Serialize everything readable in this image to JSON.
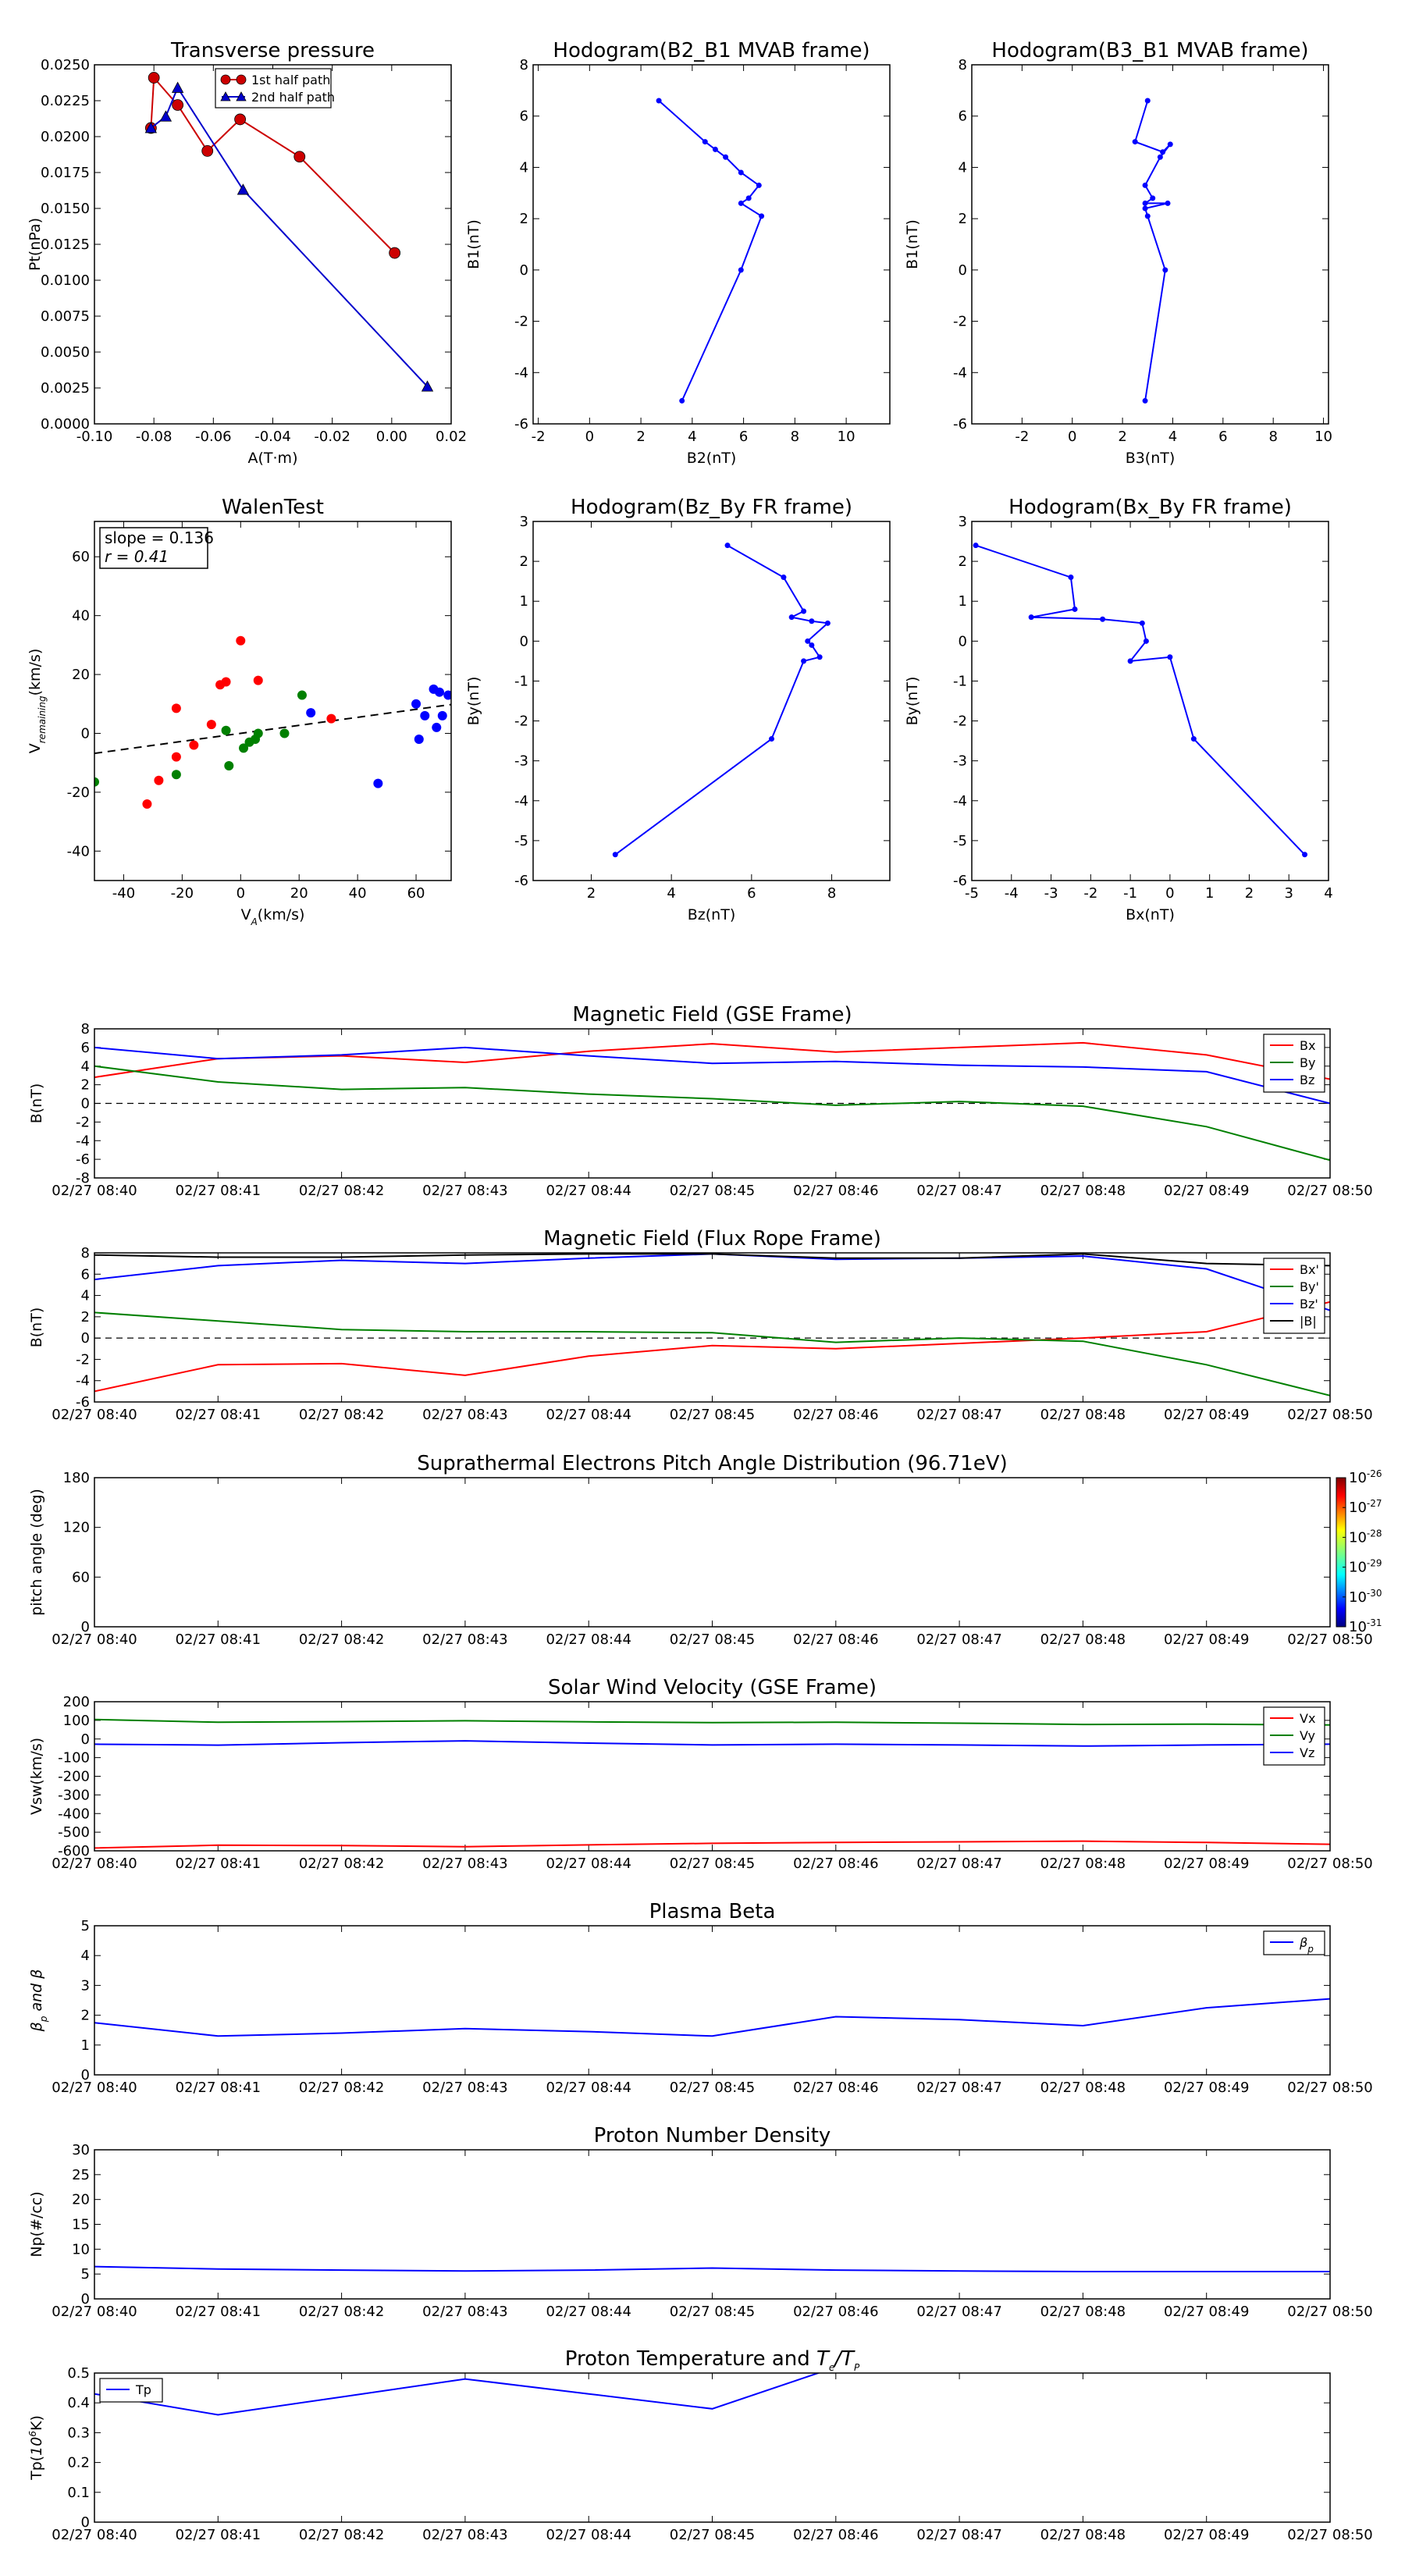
{
  "chart_data": [
    {
      "id": "pt",
      "type": "line",
      "title": "Transverse pressure",
      "xlabel": "A(T·m)",
      "ylabel": "Pt(nPa)",
      "xlim": [
        -0.1,
        0.02
      ],
      "ylim": [
        0,
        0.025
      ],
      "xticks": [
        -0.1,
        -0.08,
        -0.06,
        -0.04,
        -0.02,
        0.0,
        0.02
      ],
      "xticklabels": [
        "-0.10",
        "-0.08",
        "-0.06",
        "-0.04",
        "-0.02",
        "0.00",
        "0.02"
      ],
      "yticks": [
        0,
        0.0025,
        0.005,
        0.0075,
        0.01,
        0.0125,
        0.015,
        0.0175,
        0.02,
        0.0225,
        0.025
      ],
      "yticklabels": [
        "0.0000",
        "0.0025",
        "0.0050",
        "0.0075",
        "0.0100",
        "0.0125",
        "0.0150",
        "0.0175",
        "0.0200",
        "0.0225",
        "0.0250"
      ],
      "legend": "top-center",
      "series": [
        {
          "name": "1st half path",
          "color": "#cc0000",
          "marker": "circle",
          "x": [
            0.001,
            -0.031,
            -0.051,
            -0.062,
            -0.072,
            -0.08,
            -0.081
          ],
          "y": [
            0.0119,
            0.0186,
            0.0212,
            0.019,
            0.0222,
            0.0241,
            0.0206
          ]
        },
        {
          "name": "2nd half path",
          "color": "#0000cc",
          "marker": "triangle",
          "x": [
            -0.081,
            -0.076,
            -0.072,
            -0.05,
            0.012
          ],
          "y": [
            0.0206,
            0.0214,
            0.0234,
            0.0163,
            0.0026
          ]
        }
      ]
    },
    {
      "id": "h21",
      "type": "line",
      "title": "Hodogram(B2_B1 MVAB frame)",
      "xlabel": "B2(nT)",
      "ylabel": "B1(nT)",
      "xlim": [
        -2.2,
        11.7
      ],
      "ylim": [
        -6,
        8
      ],
      "xticks": [
        -2,
        0,
        2,
        4,
        6,
        8,
        10
      ],
      "yticks": [
        -6,
        -4,
        -2,
        0,
        2,
        4,
        6,
        8
      ],
      "series": [
        {
          "name": "",
          "color": "#0000ff",
          "marker": "dot",
          "x": [
            2.7,
            4.5,
            4.9,
            5.3,
            5.9,
            6.6,
            6.2,
            5.9,
            6.7,
            5.9,
            3.6
          ],
          "y": [
            6.6,
            5.0,
            4.7,
            4.4,
            3.8,
            3.3,
            2.8,
            2.6,
            2.1,
            0.0,
            -5.1
          ]
        }
      ]
    },
    {
      "id": "h31",
      "type": "line",
      "title": "Hodogram(B3_B1 MVAB frame)",
      "xlabel": "B3(nT)",
      "ylabel": "B1(nT)",
      "xlim": [
        -4,
        10.2
      ],
      "ylim": [
        -6,
        8
      ],
      "xticks": [
        -2,
        0,
        2,
        4,
        6,
        8,
        10
      ],
      "yticks": [
        -6,
        -4,
        -2,
        0,
        2,
        4,
        6,
        8
      ],
      "series": [
        {
          "name": "",
          "color": "#0000ff",
          "marker": "dot",
          "x": [
            3.0,
            2.5,
            3.6,
            3.9,
            3.5,
            2.9,
            3.2,
            2.9,
            3.8,
            2.9,
            3.0,
            3.7,
            2.9
          ],
          "y": [
            6.6,
            5.0,
            4.6,
            4.9,
            4.4,
            3.3,
            2.8,
            2.6,
            2.6,
            2.4,
            2.1,
            0.0,
            -5.1
          ]
        }
      ]
    },
    {
      "id": "walen",
      "type": "scatter",
      "title": "WalenTest",
      "xlabel": "V",
      "xlabel_sub": "A",
      "xlabel_rest": "(km/s)",
      "ylabel": "V",
      "ylabel_sub": "remaining",
      "ylabel_rest": "(km/s)",
      "xlim": [
        -50,
        72
      ],
      "ylim": [
        -50,
        72
      ],
      "xticks": [
        -40,
        -20,
        0,
        20,
        40,
        60
      ],
      "yticks": [
        -40,
        -20,
        0,
        20,
        40,
        60
      ],
      "annotation": [
        "slope = 0.136",
        "r = 0.41"
      ],
      "fit": {
        "x": [
          -50,
          72
        ],
        "y": [
          -6.8,
          9.8
        ]
      },
      "series": [
        {
          "name": "",
          "color": "#ff0000",
          "x": [
            -32,
            -28,
            -22,
            -22,
            -16,
            -10,
            -7,
            -5,
            0,
            6,
            31
          ],
          "y": [
            -24,
            -16,
            8.5,
            -8,
            -4,
            3,
            16.5,
            17.5,
            31.5,
            18,
            5
          ]
        },
        {
          "name": "",
          "color": "#008000",
          "x": [
            -50,
            -22,
            -5,
            -4,
            1,
            3,
            5,
            6,
            15,
            21
          ],
          "y": [
            -16.5,
            -14,
            1,
            -11,
            -5,
            -3,
            -2,
            0,
            0,
            13
          ]
        },
        {
          "name": "",
          "color": "#0000ff",
          "x": [
            24,
            47,
            60,
            61,
            63,
            66,
            67,
            68,
            69,
            71
          ],
          "y": [
            7,
            -17,
            10,
            -2,
            6,
            15,
            2,
            14,
            6,
            13
          ]
        }
      ]
    },
    {
      "id": "hzy",
      "type": "line",
      "title": "Hodogram(Bz_By FR frame)",
      "xlabel": "Bz(nT)",
      "ylabel": "By(nT)",
      "xlim": [
        0.55,
        9.45
      ],
      "ylim": [
        -6,
        3
      ],
      "xticks": [
        2,
        4,
        6,
        8
      ],
      "yticks": [
        -6,
        -5,
        -4,
        -3,
        -2,
        -1,
        0,
        1,
        2,
        3
      ],
      "series": [
        {
          "name": "",
          "color": "#0000ff",
          "marker": "dot",
          "x": [
            5.4,
            6.8,
            7.3,
            7.0,
            7.5,
            7.9,
            7.4,
            7.5,
            7.7,
            7.3,
            6.5,
            2.6
          ],
          "y": [
            2.4,
            1.6,
            0.75,
            0.6,
            0.5,
            0.45,
            0.0,
            -0.1,
            -0.4,
            -0.5,
            -2.45,
            -5.35
          ]
        }
      ]
    },
    {
      "id": "hxy",
      "type": "line",
      "title": "Hodogram(Bx_By FR frame)",
      "xlabel": "Bx(nT)",
      "ylabel": "By(nT)",
      "xlim": [
        -5,
        4
      ],
      "ylim": [
        -6,
        3
      ],
      "xticks": [
        -5,
        -4,
        -3,
        -2,
        -1,
        0,
        1,
        2,
        3,
        4
      ],
      "yticks": [
        -6,
        -5,
        -4,
        -3,
        -2,
        -1,
        0,
        1,
        2,
        3
      ],
      "series": [
        {
          "name": "",
          "color": "#0000ff",
          "marker": "dot",
          "x": [
            -4.9,
            -2.5,
            -2.4,
            -3.5,
            -1.7,
            -0.7,
            -0.6,
            -1.0,
            0.0,
            0.6,
            3.4
          ],
          "y": [
            2.4,
            1.6,
            0.8,
            0.6,
            0.55,
            0.45,
            0.0,
            -0.5,
            -0.4,
            -2.45,
            -5.35
          ]
        }
      ]
    },
    {
      "id": "bgse",
      "type": "line",
      "title": "Magnetic Field (GSE Frame)",
      "ylabel": "B(nT)",
      "ylim": [
        -8,
        8
      ],
      "yticks": [
        -8,
        -6,
        -4,
        -2,
        0,
        2,
        4,
        6,
        8
      ],
      "zero_line": true,
      "legend": "top-right",
      "categories": [
        "02/27 08:40",
        "02/27 08:41",
        "02/27 08:42",
        "02/27 08:43",
        "02/27 08:44",
        "02/27 08:45",
        "02/27 08:46",
        "02/27 08:47",
        "02/27 08:48",
        "02/27 08:49",
        "02/27 08:50"
      ],
      "series": [
        {
          "name": "Bx",
          "color": "#ff0000",
          "values": [
            2.8,
            4.8,
            5.1,
            4.4,
            5.6,
            6.4,
            5.5,
            6.0,
            6.5,
            5.2,
            2.6
          ]
        },
        {
          "name": "By",
          "color": "#008000",
          "values": [
            4.0,
            2.3,
            1.5,
            1.7,
            1.0,
            0.5,
            -0.2,
            0.2,
            -0.3,
            -2.5,
            -6.1
          ]
        },
        {
          "name": "Bz",
          "color": "#0000ff",
          "values": [
            6.0,
            4.8,
            5.2,
            6.0,
            5.1,
            4.3,
            4.5,
            4.1,
            3.9,
            3.4,
            0.0
          ]
        }
      ]
    },
    {
      "id": "bfr",
      "type": "line",
      "title": "Magnetic Field (Flux Rope Frame)",
      "ylabel": "B(nT)",
      "ylim": [
        -6,
        8
      ],
      "yticks": [
        -6,
        -4,
        -2,
        0,
        2,
        4,
        6,
        8
      ],
      "zero_line": true,
      "legend": "top-right",
      "categories": [
        "02/27 08:40",
        "02/27 08:41",
        "02/27 08:42",
        "02/27 08:43",
        "02/27 08:44",
        "02/27 08:45",
        "02/27 08:46",
        "02/27 08:47",
        "02/27 08:48",
        "02/27 08:49",
        "02/27 08:50"
      ],
      "series": [
        {
          "name": "Bx'",
          "color": "#ff0000",
          "values": [
            -5.0,
            -2.5,
            -2.4,
            -3.5,
            -1.7,
            -0.7,
            -1.0,
            -0.5,
            0.0,
            0.6,
            3.4
          ]
        },
        {
          "name": "By'",
          "color": "#008000",
          "values": [
            2.4,
            1.6,
            0.8,
            0.6,
            0.6,
            0.5,
            -0.4,
            0.0,
            -0.3,
            -2.5,
            -5.4
          ]
        },
        {
          "name": "Bz'",
          "color": "#0000ff",
          "values": [
            5.5,
            6.8,
            7.3,
            7.0,
            7.5,
            7.9,
            7.4,
            7.5,
            7.7,
            6.5,
            2.6
          ]
        },
        {
          "name": "|B|",
          "color": "#000000",
          "values": [
            7.8,
            7.6,
            7.6,
            7.8,
            7.9,
            7.9,
            7.5,
            7.5,
            7.9,
            7.0,
            6.8
          ]
        }
      ]
    },
    {
      "id": "pad",
      "type": "heatmap",
      "title": "Suprathermal Electrons Pitch Angle Distribution (96.71eV)",
      "ylabel": "pitch angle (deg)",
      "ylim": [
        0,
        180
      ],
      "yticks": [
        0,
        60,
        120,
        180
      ],
      "categories": [
        "02/27 08:40",
        "02/27 08:41",
        "02/27 08:42",
        "02/27 08:43",
        "02/27 08:44",
        "02/27 08:45",
        "02/27 08:46",
        "02/27 08:47",
        "02/27 08:48",
        "02/27 08:49",
        "02/27 08:50"
      ],
      "colorbar_exponents": [
        "-26",
        "-27",
        "-28",
        "-29",
        "-30",
        "-31"
      ],
      "colorbar_base": "10"
    },
    {
      "id": "vsw",
      "type": "line",
      "title": "Solar Wind Velocity (GSE Frame)",
      "ylabel": "Vsw(km/s)",
      "ylim": [
        -600,
        200
      ],
      "yticks": [
        -600,
        -500,
        -400,
        -300,
        -200,
        -100,
        0,
        100,
        200
      ],
      "legend": "top-right",
      "categories": [
        "02/27 08:40",
        "02/27 08:41",
        "02/27 08:42",
        "02/27 08:43",
        "02/27 08:44",
        "02/27 08:45",
        "02/27 08:46",
        "02/27 08:47",
        "02/27 08:48",
        "02/27 08:49",
        "02/27 08:50"
      ],
      "series": [
        {
          "name": "Vx",
          "color": "#ff0000",
          "values": [
            -585,
            -570,
            -572,
            -578,
            -568,
            -560,
            -555,
            -552,
            -548,
            -555,
            -565
          ]
        },
        {
          "name": "Vy",
          "color": "#008000",
          "values": [
            105,
            90,
            93,
            98,
            92,
            88,
            90,
            85,
            78,
            80,
            75
          ]
        },
        {
          "name": "Vz",
          "color": "#0000ff",
          "values": [
            -28,
            -33,
            -20,
            -10,
            -22,
            -32,
            -28,
            -32,
            -38,
            -32,
            -28
          ]
        }
      ]
    },
    {
      "id": "beta",
      "type": "line",
      "title": "Plasma Beta",
      "ylabel": "β",
      "ylabel_sub": "p",
      "ylabel_rest": " and β",
      "ylim": [
        0,
        5
      ],
      "yticks": [
        0,
        1,
        2,
        3,
        4,
        5
      ],
      "legend": "top-right",
      "categories": [
        "02/27 08:40",
        "02/27 08:41",
        "02/27 08:42",
        "02/27 08:43",
        "02/27 08:44",
        "02/27 08:45",
        "02/27 08:46",
        "02/27 08:47",
        "02/27 08:48",
        "02/27 08:49",
        "02/27 08:50"
      ],
      "series": [
        {
          "name": "β",
          "name_sub": "p",
          "color": "#0000ff",
          "values": [
            1.75,
            1.3,
            1.4,
            1.55,
            1.45,
            1.3,
            1.95,
            1.85,
            1.65,
            2.25,
            2.55
          ]
        }
      ]
    },
    {
      "id": "np",
      "type": "line",
      "title": "Proton Number Density",
      "ylabel": "Np(#/cc)",
      "ylim": [
        0,
        30
      ],
      "yticks": [
        0,
        5,
        10,
        15,
        20,
        25,
        30
      ],
      "categories": [
        "02/27 08:40",
        "02/27 08:41",
        "02/27 08:42",
        "02/27 08:43",
        "02/27 08:44",
        "02/27 08:45",
        "02/27 08:46",
        "02/27 08:47",
        "02/27 08:48",
        "02/27 08:49",
        "02/27 08:50"
      ],
      "series": [
        {
          "name": "",
          "color": "#0000ff",
          "values": [
            6.5,
            6.0,
            5.8,
            5.6,
            5.8,
            6.2,
            5.8,
            5.6,
            5.5,
            5.5,
            5.5
          ]
        }
      ]
    },
    {
      "id": "tp",
      "type": "line",
      "title": "Proton Temperature and ",
      "title_math": "T",
      "title_math_sub": "e",
      "title_math_mid": "/",
      "title_math2": "T",
      "title_math2_sub": "P",
      "ylabel": "Tp(",
      "ylabel_sup_base": "10",
      "ylabel_sup": "6",
      "ylabel_rest": "K)",
      "ylim": [
        0,
        0.5
      ],
      "yticks": [
        0,
        0.1,
        0.2,
        0.3,
        0.4,
        0.5
      ],
      "legend": "top-left",
      "categories": [
        "02/27 08:40",
        "02/27 08:41",
        "02/27 08:42",
        "02/27 08:43",
        "02/27 08:44",
        "02/27 08:45",
        "02/27 08:46",
        "02/27 08:47",
        "02/27 08:48",
        "02/27 08:49",
        "02/27 08:50"
      ],
      "series": [
        {
          "name": "Tp",
          "color": "#0000ff",
          "values": [
            0.43,
            0.36,
            0.42,
            0.48,
            0.43,
            0.38,
            0.52,
            null,
            null,
            null,
            null
          ]
        }
      ]
    }
  ]
}
